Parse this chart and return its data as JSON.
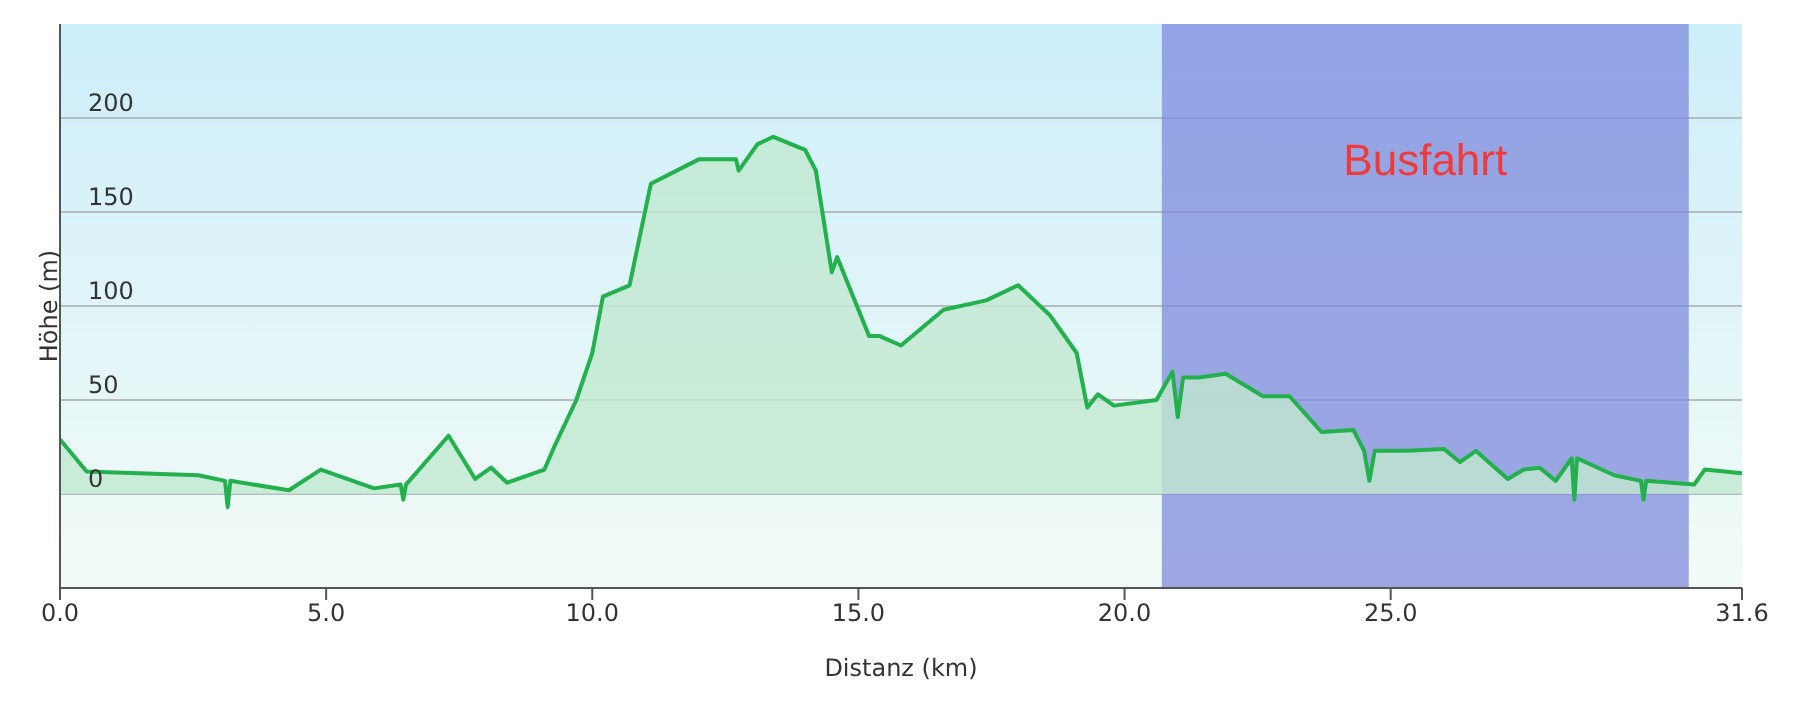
{
  "chart_data": {
    "type": "area",
    "xlabel": "Distanz  (km)",
    "ylabel": "Höhe (m)",
    "x": [
      0,
      0.5,
      2.6,
      3.1,
      3.15,
      3.2,
      4.3,
      4.9,
      5.9,
      6.4,
      6.45,
      6.5,
      7.3,
      7.8,
      8.1,
      8.4,
      9.1,
      9.3,
      9.7,
      10.0,
      10.2,
      10.7,
      11.1,
      12.0,
      12.7,
      12.75,
      13.1,
      13.4,
      14.0,
      14.2,
      14.5,
      14.6,
      14.9,
      15.2,
      15.4,
      15.8,
      16.6,
      17.4,
      18.0,
      18.6,
      19.1,
      19.3,
      19.5,
      19.8,
      20.6,
      20.9,
      21.0,
      21.1,
      21.4,
      21.9,
      22.6,
      23.1,
      23.7,
      24.3,
      24.5,
      24.6,
      24.7,
      25.3,
      26.0,
      26.3,
      26.6,
      27.2,
      27.5,
      27.8,
      28.1,
      28.4,
      28.45,
      28.5,
      29.2,
      29.7,
      29.75,
      29.8,
      30.7,
      30.9,
      31.6
    ],
    "series": [
      {
        "color": "#22b14c",
        "values": [
          29,
          12,
          10,
          7,
          -7,
          7,
          2,
          13,
          3,
          5,
          -3,
          5,
          31,
          8,
          14,
          6,
          13,
          26,
          50,
          75,
          105,
          111,
          165,
          178,
          178,
          172,
          186,
          190,
          183,
          172,
          118,
          126,
          105,
          84,
          84,
          79,
          98,
          103,
          111,
          95,
          75,
          46,
          53,
          47,
          50,
          65,
          41,
          62,
          62,
          64,
          52,
          52,
          33,
          34,
          23,
          7,
          23,
          23,
          24,
          17,
          23,
          8,
          13,
          14,
          7,
          19,
          -3,
          19,
          10,
          7,
          -3,
          7,
          5,
          13,
          11
        ]
      }
    ],
    "xlim": [
      0,
      31.6
    ],
    "xticks": [
      {
        "value": 0,
        "label": "0.0"
      },
      {
        "value": 5,
        "label": "5.0"
      },
      {
        "value": 10,
        "label": "10.0"
      },
      {
        "value": 15,
        "label": "15.0"
      },
      {
        "value": 20,
        "label": "20.0"
      },
      {
        "value": 25,
        "label": "25.0"
      },
      31.6
    ],
    "ylim": [
      -50,
      250
    ],
    "yticks": [
      0,
      50,
      100,
      150,
      200
    ],
    "grid": "y",
    "bands": [
      {
        "axis": "x",
        "from": 20.7,
        "to": 30.6,
        "label": "Busfahrt",
        "color": "#7f8bdc"
      }
    ]
  }
}
